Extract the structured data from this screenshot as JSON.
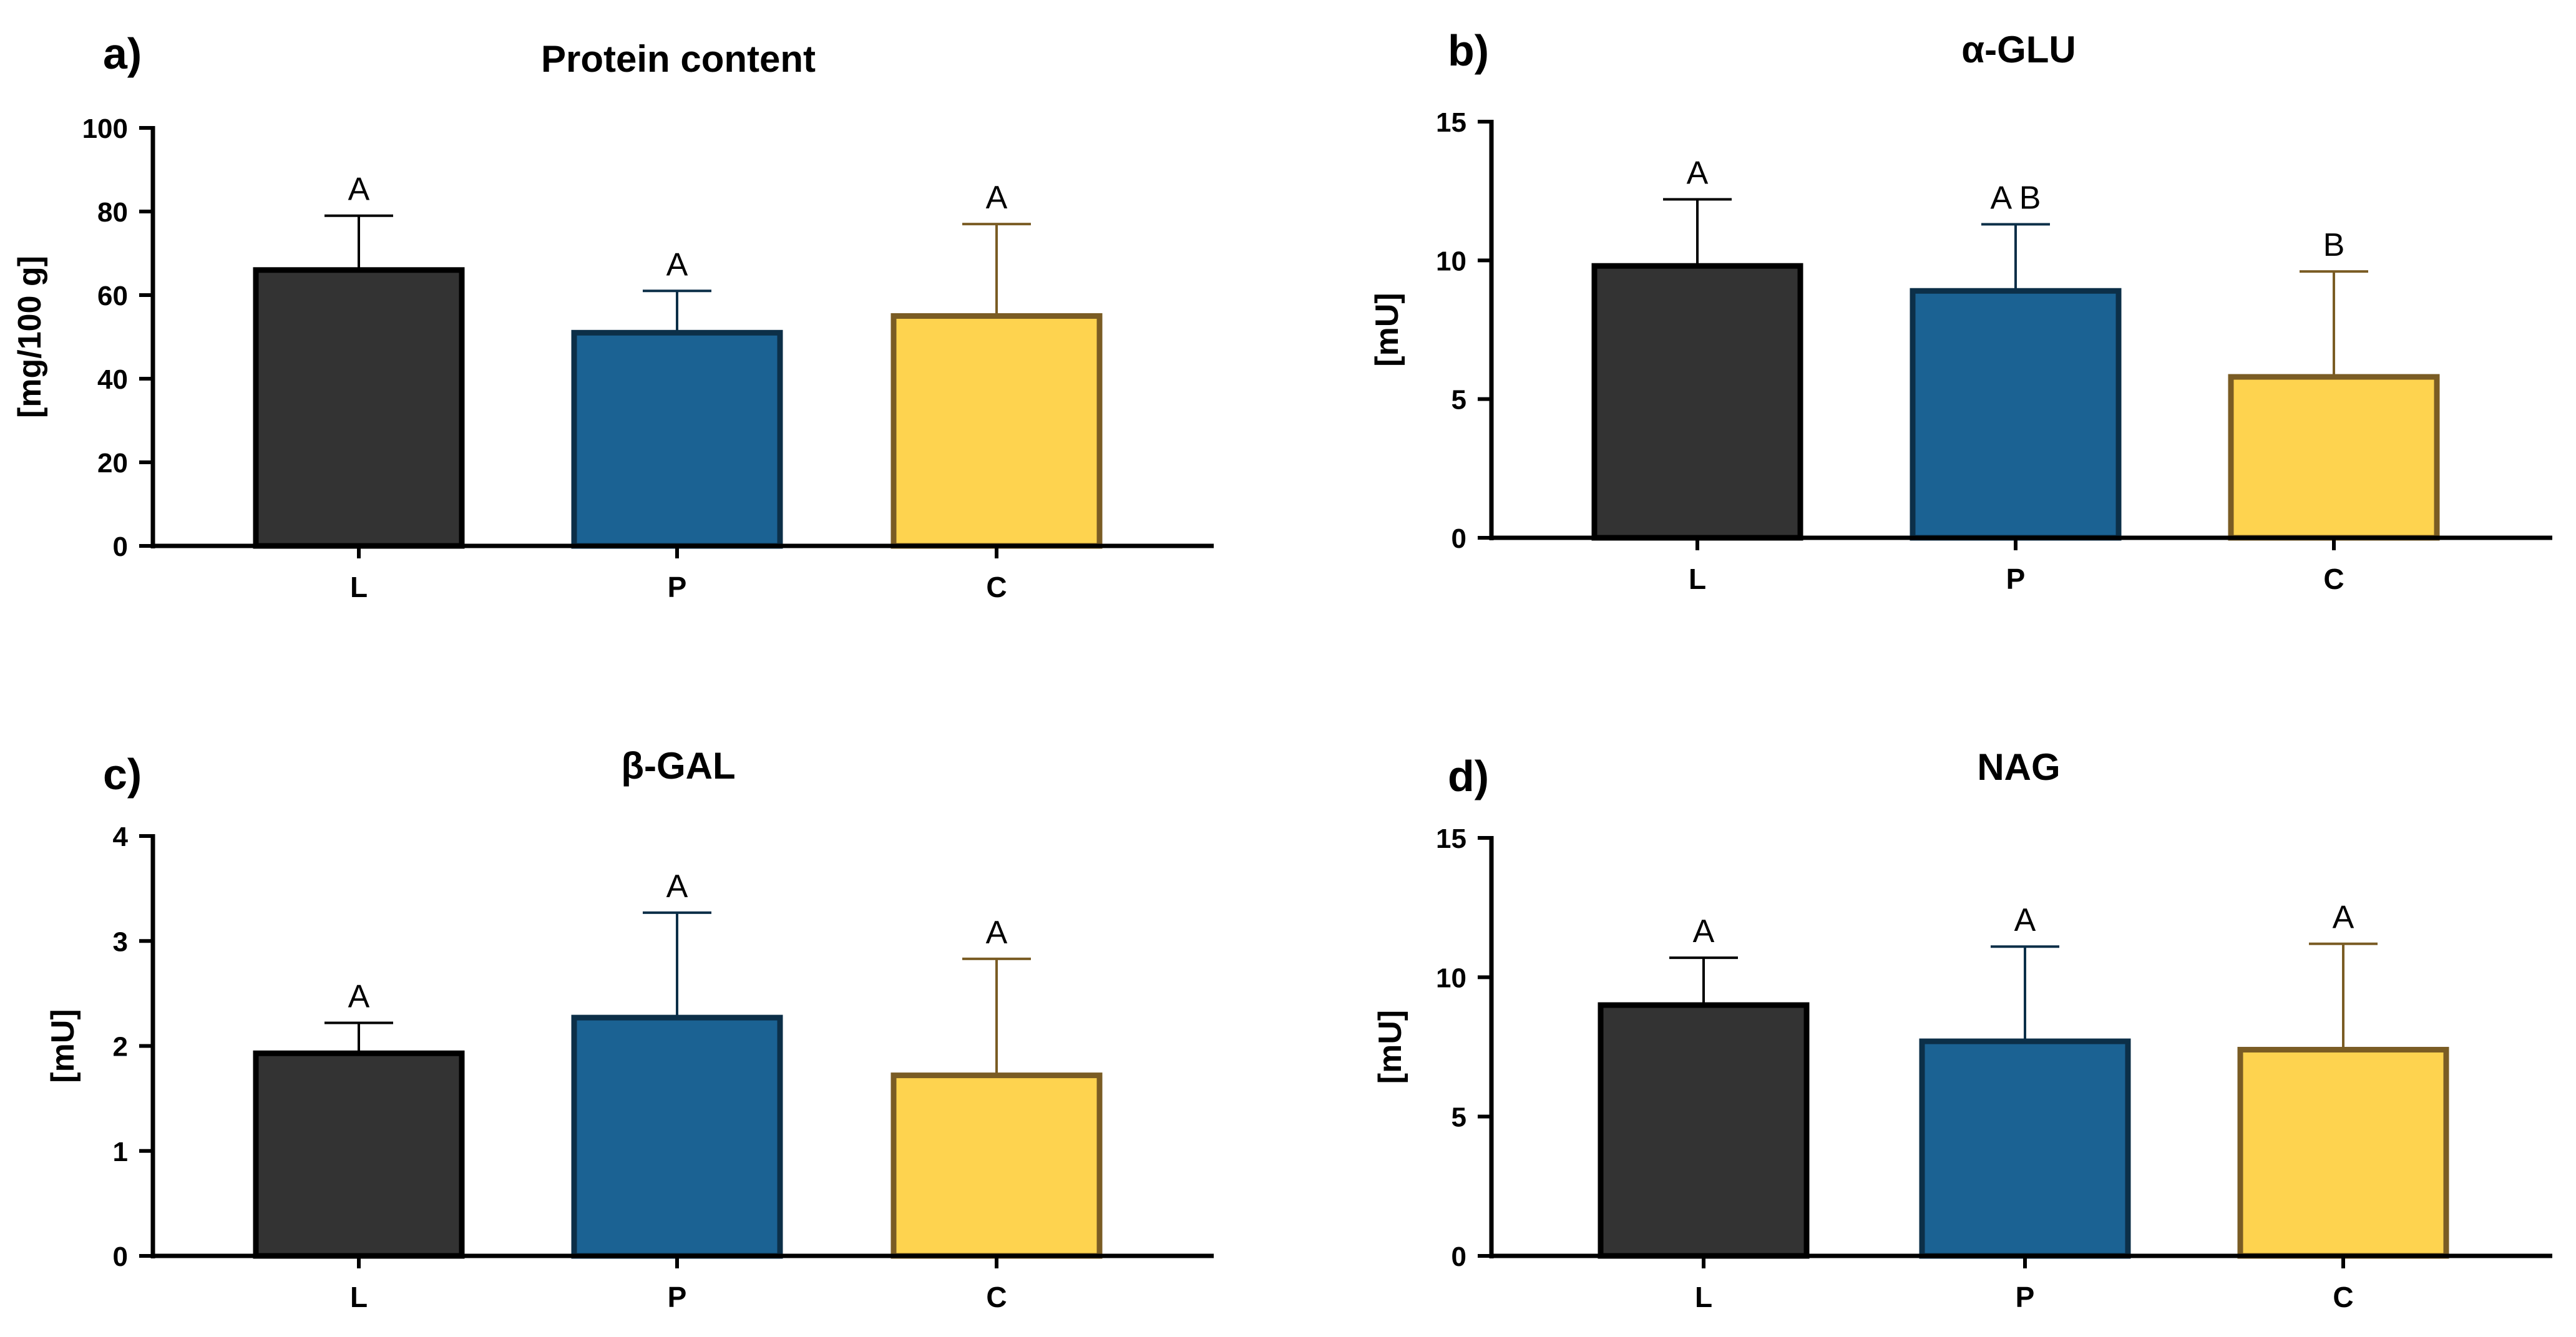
{
  "chart_data": [
    {
      "type": "bar",
      "panel": "a)",
      "title": "Protein content",
      "xlabel": "",
      "ylabel": "[mg/100 g]",
      "categories": [
        "L",
        "P",
        "C"
      ],
      "values": [
        66,
        51,
        55
      ],
      "errors": [
        13,
        10,
        22
      ],
      "significance": [
        "A",
        "A",
        "A"
      ],
      "ylim": [
        0,
        100
      ],
      "yticks": [
        0,
        20,
        40,
        60,
        80,
        100
      ]
    },
    {
      "type": "bar",
      "panel": "b)",
      "title": "α-GLU",
      "xlabel": "",
      "ylabel": "[mU]",
      "categories": [
        "L",
        "P",
        "C"
      ],
      "values": [
        9.8,
        8.9,
        5.8
      ],
      "errors": [
        2.4,
        2.4,
        3.8
      ],
      "significance": [
        "A",
        "A B",
        "B"
      ],
      "ylim": [
        0,
        15
      ],
      "yticks": [
        0,
        5,
        10,
        15
      ]
    },
    {
      "type": "bar",
      "panel": "c)",
      "title": "β-GAL",
      "xlabel": "",
      "ylabel": "[mU]",
      "categories": [
        "L",
        "P",
        "C"
      ],
      "values": [
        1.93,
        2.27,
        1.72
      ],
      "errors": [
        0.29,
        1.0,
        1.11
      ],
      "significance": [
        "A",
        "A",
        "A"
      ],
      "ylim": [
        0,
        4
      ],
      "yticks": [
        0,
        1,
        2,
        3,
        4
      ]
    },
    {
      "type": "bar",
      "panel": "d)",
      "title": "NAG",
      "xlabel": "",
      "ylabel": "[mU]",
      "categories": [
        "L",
        "P",
        "C"
      ],
      "values": [
        9.0,
        7.7,
        7.4
      ],
      "errors": [
        1.7,
        3.4,
        3.8
      ],
      "significance": [
        "A",
        "A",
        "A"
      ],
      "ylim": [
        0,
        15
      ],
      "yticks": [
        0,
        5,
        10,
        15
      ]
    }
  ],
  "colors": {
    "fills": [
      "#333333",
      "#1b6293",
      "#fed34f"
    ],
    "strokes": [
      "#000000",
      "#0c2f48",
      "#7a5c24"
    ]
  }
}
